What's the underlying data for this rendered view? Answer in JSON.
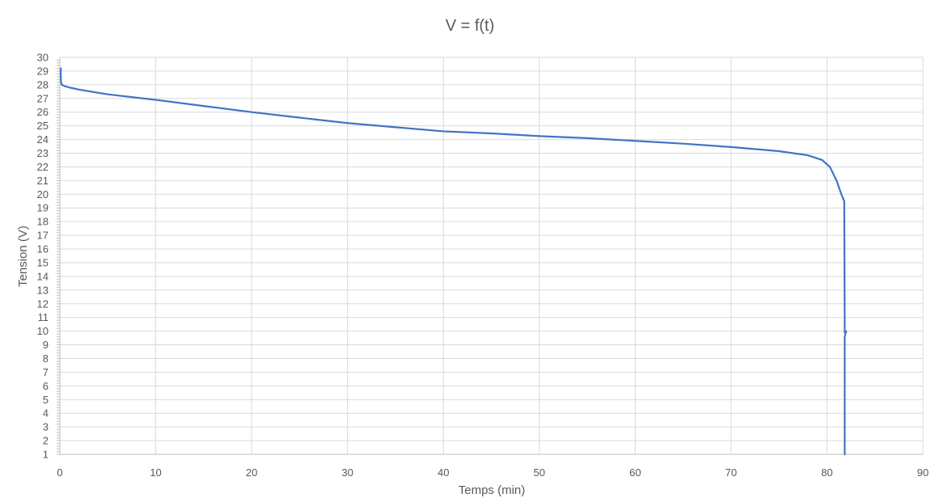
{
  "chart_data": {
    "type": "line",
    "title": "V = f(t)",
    "xlabel": "Temps (min)",
    "ylabel": "Tension (V)",
    "xlim": [
      0,
      90
    ],
    "ylim": [
      1,
      30
    ],
    "x_ticks": [
      "0",
      "10",
      "20",
      "30",
      "40",
      "50",
      "60",
      "70",
      "80",
      "90"
    ],
    "y_ticks": [
      "1",
      "2",
      "3",
      "4",
      "5",
      "6",
      "7",
      "8",
      "9",
      "10",
      "11",
      "12",
      "13",
      "14",
      "15",
      "16",
      "17",
      "18",
      "19",
      "20",
      "21",
      "22",
      "23",
      "24",
      "25",
      "26",
      "27",
      "28",
      "29",
      "30"
    ],
    "grid": true,
    "legend": "none",
    "colors": {
      "series": "#4472c4",
      "grid": "#d9d9d9",
      "text": "#595959"
    },
    "series": [
      {
        "x": [
          0.1,
          0.1,
          0.12,
          0.2,
          0.5,
          1,
          2,
          5,
          10,
          15,
          20,
          25,
          30,
          35,
          40,
          45,
          50,
          55,
          60,
          65,
          70,
          75,
          78,
          79.5,
          80.3,
          81,
          81.5,
          81.8,
          81.85,
          81.85,
          82.0,
          81.85,
          81.85
        ],
        "y": [
          29.2,
          28.6,
          28.2,
          28.0,
          27.9,
          27.8,
          27.65,
          27.3,
          26.9,
          26.45,
          26.0,
          25.6,
          25.2,
          24.9,
          24.6,
          24.45,
          24.25,
          24.1,
          23.9,
          23.7,
          23.45,
          23.15,
          22.85,
          22.5,
          22.0,
          21.0,
          20.0,
          19.5,
          10.2,
          9.9,
          10.0,
          9.6,
          1
        ]
      }
    ]
  }
}
